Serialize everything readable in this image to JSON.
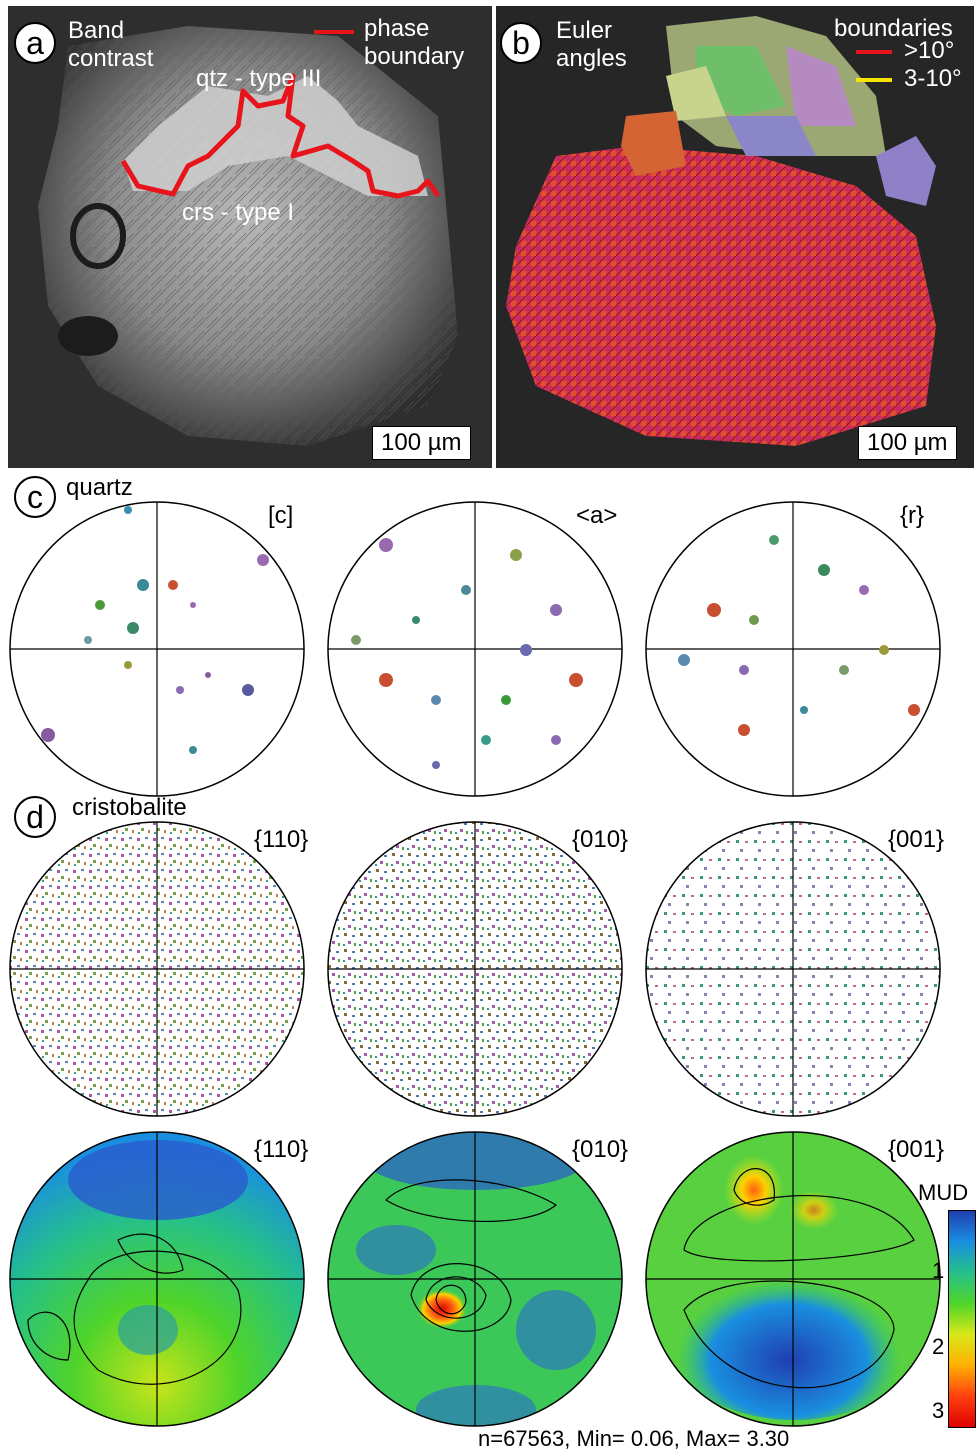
{
  "panel_a": {
    "label": "a",
    "title_line1": "Band",
    "title_line2": "contrast",
    "legend_line1": "phase",
    "legend_line2": "boundary",
    "phase_top": "qtz - type III",
    "phase_bottom": "crs - type I",
    "scalebar": "100 µm",
    "boundary_color": "#e8141c"
  },
  "panel_b": {
    "label": "b",
    "title_line1": "Euler",
    "title_line2": "angles",
    "legend_title": "boundaries",
    "legend_high": ">10°",
    "legend_low": "3-10°",
    "scalebar": "100 µm",
    "high_color": "#e8141c",
    "low_color": "#f5e400"
  },
  "panel_c": {
    "label": "c",
    "mineral": "quartz",
    "poles": [
      "[c]",
      "<a>",
      "{r}"
    ]
  },
  "panel_d": {
    "label": "d",
    "mineral": "cristobalite",
    "poles": [
      "{110}",
      "{010}",
      "{001}"
    ],
    "contour_poles": [
      "{110}",
      "{010}",
      "{001}"
    ],
    "colorbar": {
      "title": "MUD",
      "ticks": [
        "1",
        "2",
        "3"
      ],
      "colors": [
        "#1f3fb0",
        "#1a8fe0",
        "#25c08a",
        "#4fd42a",
        "#d8e81a",
        "#ffb000",
        "#ff4010",
        "#e00000"
      ]
    },
    "stats": "n=67563, Min= 0.06, Max= 3.30"
  }
}
